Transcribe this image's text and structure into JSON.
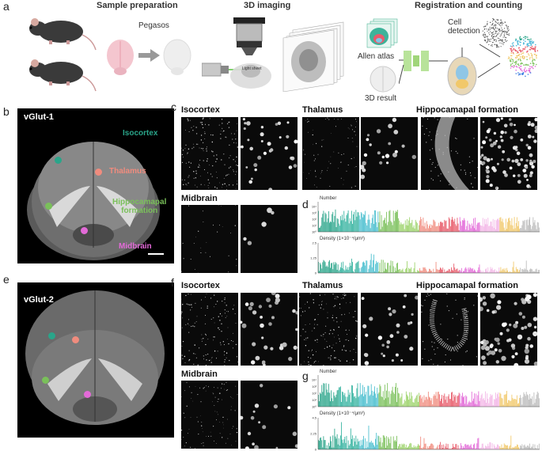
{
  "panel_a": {
    "label": "a",
    "heading_prep": "Sample preparation",
    "heading_imaging": "3D imaging",
    "heading_reg": "Registration and counting",
    "pegasos": "Pegasos",
    "light_sheet": "Light sheet",
    "allen_atlas": "Allen atlas",
    "cell_detection": "Cell\ndetection",
    "result_3d": "3D  result"
  },
  "panel_b": {
    "label": "b",
    "title": "vGlut-1",
    "regions": [
      "Isocortex",
      "Thalamus",
      "Hippocamapal\nformation",
      "Midbrain"
    ]
  },
  "panel_c": {
    "label": "c",
    "regions": [
      "Isocortex",
      "Thalamus",
      "Hippocamapal formation",
      "Midbrain"
    ]
  },
  "panel_d": {
    "label": "d",
    "top_label": "Number",
    "bottom_label": "Density  (1×10⁻⁴/μm³)",
    "top_ticks": [
      "10⁴",
      "10³",
      "10²",
      "10¹",
      "10⁰"
    ],
    "bottom_ticks": [
      "2.5",
      "1.25",
      "0"
    ]
  },
  "panel_e": {
    "label": "e",
    "title": "vGlut-2"
  },
  "panel_f": {
    "label": "f",
    "regions": [
      "Isocortex",
      "Thalamus",
      "Hippocamapal formation",
      "Midbrain"
    ]
  },
  "panel_g": {
    "label": "g",
    "top_label": "Number",
    "bottom_label": "Density  (1×10⁻⁴/μm³)",
    "top_ticks": [
      "10⁴",
      "10³",
      "10²",
      "10¹",
      "10⁰"
    ],
    "bottom_ticks": [
      "4.5",
      "2.25",
      "0"
    ]
  },
  "colors": {
    "isocortex": "#2aa58a",
    "thalamus": "#f08c7e",
    "hippocampal": "#7ac05a",
    "midbrain": "#e36ad8"
  }
}
